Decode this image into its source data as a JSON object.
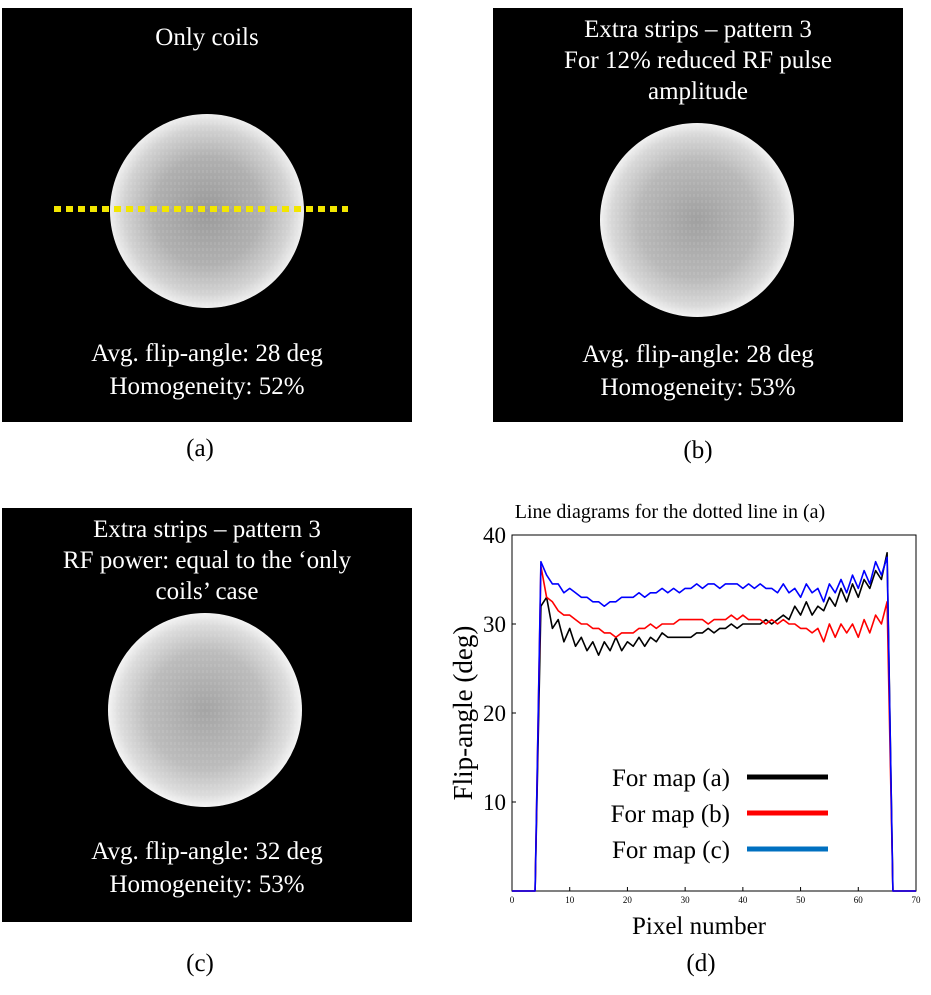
{
  "panels": {
    "a": {
      "title_lines": [
        "Only coils"
      ],
      "avg_text": "Avg. flip-angle: 28 deg",
      "homogeneity_text": "Homogeneity: 52%",
      "caption": "(a)"
    },
    "b": {
      "title_lines": [
        "Extra strips – pattern 3",
        "For 12% reduced RF pulse",
        "amplitude"
      ],
      "avg_text": "Avg. flip-angle: 28 deg",
      "homogeneity_text": "Homogeneity: 53%",
      "caption": "(b)"
    },
    "c": {
      "title_lines": [
        "Extra strips – pattern 3",
        "RF power: equal to the ‘only",
        "coils’ case"
      ],
      "avg_text": "Avg. flip-angle: 32 deg",
      "homogeneity_text": "Homogeneity: 53%",
      "caption": "(c)"
    },
    "d": {
      "caption": "(d)"
    }
  },
  "colors": {
    "dotted_line": "#f2e600",
    "series_a": "#000000",
    "series_b": "#ff0000",
    "series_c": "#0000ff",
    "legend_c_swatch": "#0070c0"
  },
  "chart_data": {
    "type": "line",
    "title": "Line diagrams for the dotted line in (a)",
    "xlabel": "Pixel number",
    "ylabel": "Flip-angle (deg)",
    "xlim": [
      0,
      70
    ],
    "ylim": [
      0,
      40
    ],
    "xticks": [
      0,
      10,
      20,
      30,
      40,
      50,
      60,
      70
    ],
    "yticks": [
      10,
      20,
      30,
      40
    ],
    "grid": false,
    "legend_position": "lower-center",
    "x": [
      0,
      1,
      2,
      3,
      4,
      5,
      6,
      7,
      8,
      9,
      10,
      11,
      12,
      13,
      14,
      15,
      16,
      17,
      18,
      19,
      20,
      21,
      22,
      23,
      24,
      25,
      26,
      27,
      28,
      29,
      30,
      31,
      32,
      33,
      34,
      35,
      36,
      37,
      38,
      39,
      40,
      41,
      42,
      43,
      44,
      45,
      46,
      47,
      48,
      49,
      50,
      51,
      52,
      53,
      54,
      55,
      56,
      57,
      58,
      59,
      60,
      61,
      62,
      63,
      64,
      65,
      66,
      67,
      68,
      69,
      70
    ],
    "series": [
      {
        "name": "For map (a)",
        "values": [
          0,
          0,
          0,
          0,
          0,
          32.0,
          33.0,
          29.5,
          30.5,
          28.0,
          29.5,
          27.5,
          28.5,
          27.0,
          28.0,
          26.5,
          28.0,
          27.0,
          28.5,
          27.0,
          28.0,
          27.5,
          28.5,
          27.5,
          28.5,
          28.0,
          29.0,
          28.5,
          28.5,
          28.5,
          28.5,
          28.5,
          29.0,
          29.0,
          29.5,
          29.0,
          29.5,
          29.5,
          30.0,
          29.5,
          30.0,
          30.0,
          30.0,
          30.0,
          30.5,
          30.0,
          30.5,
          31.0,
          30.5,
          32.0,
          31.0,
          32.5,
          31.0,
          32.0,
          31.5,
          33.0,
          32.0,
          34.0,
          32.5,
          34.5,
          33.0,
          35.0,
          34.0,
          36.0,
          35.0,
          38.0,
          0,
          0,
          0,
          0,
          0
        ]
      },
      {
        "name": "For map (b)",
        "values": [
          0,
          0,
          0,
          0,
          0,
          36.5,
          33.0,
          32.5,
          31.5,
          31.0,
          31.0,
          30.5,
          30.0,
          30.0,
          29.5,
          29.5,
          29.0,
          29.0,
          28.5,
          29.0,
          29.0,
          29.0,
          29.5,
          29.5,
          30.0,
          29.5,
          30.0,
          30.0,
          30.0,
          30.5,
          30.5,
          30.5,
          30.5,
          30.5,
          30.0,
          30.5,
          30.5,
          30.5,
          31.0,
          30.5,
          31.0,
          30.5,
          30.5,
          30.5,
          30.0,
          30.5,
          30.0,
          30.5,
          30.0,
          30.0,
          29.5,
          29.5,
          29.0,
          29.5,
          28.0,
          30.0,
          28.5,
          30.0,
          29.0,
          30.0,
          28.5,
          30.5,
          29.0,
          31.0,
          30.0,
          32.5,
          0,
          0,
          0,
          0,
          0
        ]
      },
      {
        "name": "For map (c)",
        "values": [
          0,
          0,
          0,
          0,
          0,
          37.0,
          35.5,
          34.5,
          34.5,
          33.5,
          34.0,
          33.5,
          33.0,
          33.0,
          32.5,
          32.5,
          32.0,
          32.5,
          32.5,
          33.0,
          33.0,
          33.0,
          33.5,
          33.0,
          33.5,
          33.5,
          34.0,
          33.5,
          34.0,
          33.5,
          34.0,
          34.0,
          34.5,
          34.0,
          34.5,
          34.5,
          34.0,
          34.5,
          34.5,
          34.5,
          34.0,
          34.5,
          34.0,
          34.5,
          34.0,
          34.0,
          33.5,
          34.5,
          33.5,
          34.0,
          33.0,
          34.5,
          33.5,
          34.0,
          32.5,
          34.5,
          33.5,
          35.0,
          33.5,
          35.5,
          34.0,
          36.0,
          34.5,
          37.0,
          35.5,
          37.5,
          0,
          0,
          0,
          0,
          0
        ]
      }
    ]
  }
}
